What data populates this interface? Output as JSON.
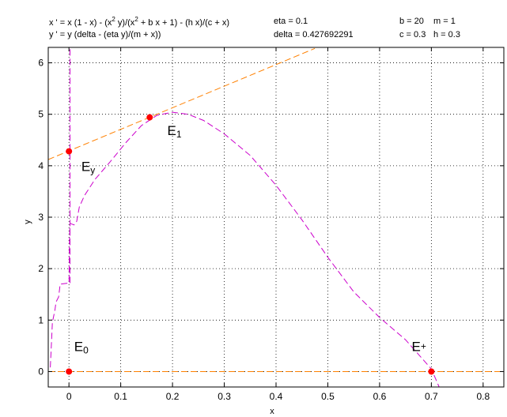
{
  "header": {
    "eq_x_parts": [
      "x ' = x (1 - x) - (x",
      "2",
      " y)/(x",
      "2",
      " + b x + 1) - (h x)/(c + x)"
    ],
    "eq_y": "y ' = y (delta - (eta y)/(m + x))",
    "params": {
      "eta": "eta = 0.1",
      "delta": "delta = 0.427692291",
      "b": "b = 20",
      "c": "c = 0.3",
      "m": "m = 1",
      "h": "h = 0.3"
    }
  },
  "chart_data": {
    "type": "line",
    "xlabel": "x",
    "ylabel": "y",
    "xlim": [
      -0.04,
      0.84
    ],
    "ylim": [
      -0.3,
      6.3
    ],
    "xticks": [
      0,
      0.1,
      0.2,
      0.3,
      0.4,
      0.5,
      0.6,
      0.7,
      0.8
    ],
    "xtick_labels": [
      "0",
      "0.1",
      "0.2",
      "0.3",
      "0.4",
      "0.5",
      "0.6",
      "0.7",
      "0.8"
    ],
    "yticks": [
      0,
      1,
      2,
      3,
      4,
      5,
      6
    ],
    "ytick_labels": [
      "0",
      "1",
      "2",
      "3",
      "4",
      "5",
      "6"
    ],
    "grid": true,
    "series": [
      {
        "color": "#cc00cc",
        "style": "dashed",
        "points": [
          [
            -0.036,
            0.08
          ],
          [
            -0.034,
            0.5
          ],
          [
            -0.032,
            0.95
          ],
          [
            -0.03,
            1.05
          ],
          [
            -0.027,
            1.2
          ],
          [
            -0.025,
            1.35
          ],
          [
            -0.02,
            1.45
          ],
          [
            -0.017,
            1.7
          ],
          [
            0.0,
            1.72
          ],
          [
            0.0,
            1.72
          ],
          [
            0.001,
            2.5
          ],
          [
            0.002,
            2.88
          ],
          [
            0.01,
            2.85
          ],
          [
            0.015,
            2.92
          ],
          [
            0.02,
            3.2
          ],
          [
            0.03,
            3.42
          ],
          [
            0.05,
            3.73
          ],
          [
            0.08,
            4.08
          ],
          [
            0.11,
            4.45
          ],
          [
            0.14,
            4.78
          ],
          [
            0.17,
            4.98
          ],
          [
            0.2,
            5.04
          ],
          [
            0.23,
            5.0
          ],
          [
            0.26,
            4.88
          ],
          [
            0.3,
            4.62
          ],
          [
            0.35,
            4.2
          ],
          [
            0.4,
            3.62
          ],
          [
            0.45,
            2.95
          ],
          [
            0.5,
            2.22
          ],
          [
            0.55,
            1.55
          ],
          [
            0.6,
            1.05
          ],
          [
            0.65,
            0.62
          ],
          [
            0.7,
            0.05
          ],
          [
            0.715,
            -0.3
          ]
        ]
      },
      {
        "color": "#cc00cc",
        "style": "dashed",
        "points": [
          [
            0.002,
            1.72
          ],
          [
            0.002,
            6.3
          ]
        ]
      },
      {
        "color": "#ff8000",
        "style": "dashed",
        "points": [
          [
            -0.04,
            4.12
          ],
          [
            0.475,
            6.28
          ]
        ]
      },
      {
        "color": "#ff8000",
        "style": "dashed",
        "points": [
          [
            -0.04,
            0.0
          ],
          [
            0.84,
            0.0
          ]
        ]
      }
    ],
    "equilibria": [
      {
        "name": "E0",
        "base": "E",
        "sub": "0",
        "x": 0.0,
        "y": 0.0,
        "label_x": 0.01,
        "label_y": 0.4
      },
      {
        "name": "Ey",
        "base": "E",
        "sub": "y",
        "x": 0.0,
        "y": 4.28,
        "label_x": 0.024,
        "label_y": 3.9
      },
      {
        "name": "E1",
        "base": "E",
        "sub": "1",
        "x": 0.156,
        "y": 4.94,
        "label_x": 0.19,
        "label_y": 4.6
      },
      {
        "name": "E+",
        "base": "E",
        "sub": "+",
        "x": 0.7,
        "y": 0.0,
        "label_x": 0.662,
        "label_y": 0.4
      }
    ],
    "point_color": "#ff0000"
  }
}
